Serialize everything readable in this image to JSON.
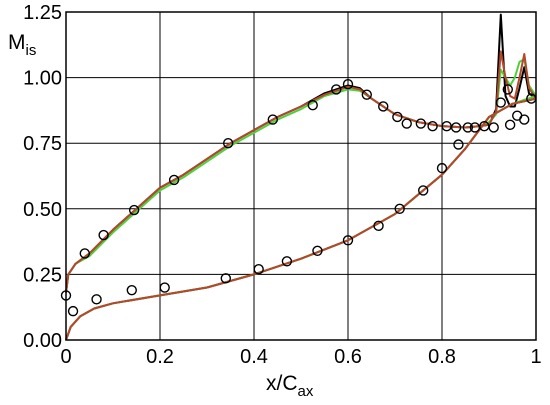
{
  "chart_data": {
    "type": "line",
    "xlabel_main": "x/C",
    "xlabel_sub": "ax",
    "ylabel_main": "M",
    "ylabel_sub": "is",
    "xlim": [
      0,
      1
    ],
    "ylim": [
      0,
      1.25
    ],
    "grid": true,
    "x_ticks": [
      0,
      0.2,
      0.4,
      0.6,
      0.8,
      1
    ],
    "x_tick_labels": [
      "0",
      "0.2",
      "0.4",
      "0.6",
      "0.8",
      "1"
    ],
    "y_ticks": [
      0,
      0.25,
      0.5,
      0.75,
      1.0,
      1.25
    ],
    "y_tick_labels": [
      "0.00",
      "0.25",
      "0.50",
      "0.75",
      "1.00",
      "1.25"
    ],
    "series": [
      {
        "color": "#000000",
        "upper": [
          [
            0,
            0.18
          ],
          [
            0.005,
            0.25
          ],
          [
            0.02,
            0.29
          ],
          [
            0.05,
            0.33
          ],
          [
            0.1,
            0.42
          ],
          [
            0.15,
            0.5
          ],
          [
            0.2,
            0.58
          ],
          [
            0.25,
            0.63
          ],
          [
            0.3,
            0.69
          ],
          [
            0.35,
            0.75
          ],
          [
            0.4,
            0.8
          ],
          [
            0.45,
            0.85
          ],
          [
            0.5,
            0.89
          ],
          [
            0.55,
            0.94
          ],
          [
            0.6,
            0.97
          ],
          [
            0.625,
            0.96
          ],
          [
            0.65,
            0.92
          ],
          [
            0.7,
            0.86
          ],
          [
            0.75,
            0.83
          ],
          [
            0.8,
            0.815
          ],
          [
            0.85,
            0.81
          ],
          [
            0.88,
            0.815
          ],
          [
            0.9,
            0.82
          ],
          [
            0.915,
            0.88
          ],
          [
            0.925,
            1.24
          ],
          [
            0.935,
            0.93
          ],
          [
            0.945,
            0.89
          ],
          [
            0.955,
            0.89
          ],
          [
            0.965,
            0.96
          ],
          [
            0.975,
            1.04
          ],
          [
            0.985,
            0.94
          ],
          [
            1,
            0.92
          ]
        ],
        "lower": [
          [
            0,
            0
          ],
          [
            0.01,
            0.05
          ],
          [
            0.03,
            0.09
          ],
          [
            0.06,
            0.12
          ],
          [
            0.1,
            0.14
          ],
          [
            0.2,
            0.17
          ],
          [
            0.3,
            0.2
          ],
          [
            0.4,
            0.25
          ],
          [
            0.5,
            0.31
          ],
          [
            0.6,
            0.38
          ],
          [
            0.7,
            0.48
          ],
          [
            0.8,
            0.63
          ],
          [
            0.85,
            0.73
          ],
          [
            0.9,
            0.85
          ],
          [
            0.95,
            0.9
          ],
          [
            1,
            0.92
          ]
        ]
      },
      {
        "color": "#4cd13a",
        "upper": [
          [
            0,
            0.18
          ],
          [
            0.005,
            0.25
          ],
          [
            0.02,
            0.29
          ],
          [
            0.05,
            0.32
          ],
          [
            0.1,
            0.41
          ],
          [
            0.15,
            0.49
          ],
          [
            0.2,
            0.57
          ],
          [
            0.25,
            0.62
          ],
          [
            0.3,
            0.68
          ],
          [
            0.35,
            0.74
          ],
          [
            0.4,
            0.79
          ],
          [
            0.45,
            0.84
          ],
          [
            0.5,
            0.88
          ],
          [
            0.55,
            0.93
          ],
          [
            0.6,
            0.955
          ],
          [
            0.625,
            0.95
          ],
          [
            0.65,
            0.92
          ],
          [
            0.7,
            0.86
          ],
          [
            0.75,
            0.83
          ],
          [
            0.8,
            0.815
          ],
          [
            0.85,
            0.81
          ],
          [
            0.88,
            0.815
          ],
          [
            0.9,
            0.83
          ],
          [
            0.915,
            0.86
          ],
          [
            0.925,
            1.03
          ],
          [
            0.935,
            1.0
          ],
          [
            0.945,
            0.97
          ],
          [
            0.955,
            1.0
          ],
          [
            0.965,
            1.06
          ],
          [
            0.975,
            1.07
          ],
          [
            0.985,
            0.97
          ],
          [
            1,
            0.93
          ]
        ],
        "lower": [
          [
            0,
            0
          ],
          [
            0.01,
            0.05
          ],
          [
            0.03,
            0.09
          ],
          [
            0.06,
            0.12
          ],
          [
            0.1,
            0.14
          ],
          [
            0.2,
            0.17
          ],
          [
            0.3,
            0.2
          ],
          [
            0.4,
            0.25
          ],
          [
            0.5,
            0.31
          ],
          [
            0.6,
            0.38
          ],
          [
            0.7,
            0.48
          ],
          [
            0.8,
            0.63
          ],
          [
            0.85,
            0.73
          ],
          [
            0.9,
            0.85
          ],
          [
            0.95,
            0.9
          ],
          [
            1,
            0.93
          ]
        ]
      },
      {
        "color": "#b5472c",
        "upper": [
          [
            0,
            0.18
          ],
          [
            0.005,
            0.25
          ],
          [
            0.02,
            0.29
          ],
          [
            0.05,
            0.33
          ],
          [
            0.1,
            0.42
          ],
          [
            0.15,
            0.5
          ],
          [
            0.2,
            0.58
          ],
          [
            0.25,
            0.63
          ],
          [
            0.3,
            0.69
          ],
          [
            0.35,
            0.75
          ],
          [
            0.4,
            0.8
          ],
          [
            0.45,
            0.85
          ],
          [
            0.5,
            0.89
          ],
          [
            0.55,
            0.935
          ],
          [
            0.6,
            0.965
          ],
          [
            0.625,
            0.955
          ],
          [
            0.65,
            0.92
          ],
          [
            0.7,
            0.86
          ],
          [
            0.75,
            0.83
          ],
          [
            0.8,
            0.815
          ],
          [
            0.85,
            0.81
          ],
          [
            0.88,
            0.815
          ],
          [
            0.9,
            0.82
          ],
          [
            0.915,
            0.87
          ],
          [
            0.925,
            1.1
          ],
          [
            0.935,
            1.0
          ],
          [
            0.945,
            0.93
          ],
          [
            0.955,
            0.92
          ],
          [
            0.965,
            1.0
          ],
          [
            0.975,
            1.09
          ],
          [
            0.985,
            0.96
          ],
          [
            1,
            0.92
          ]
        ],
        "lower": [
          [
            0,
            0
          ],
          [
            0.01,
            0.05
          ],
          [
            0.03,
            0.09
          ],
          [
            0.06,
            0.12
          ],
          [
            0.1,
            0.14
          ],
          [
            0.2,
            0.17
          ],
          [
            0.3,
            0.2
          ],
          [
            0.4,
            0.25
          ],
          [
            0.5,
            0.31
          ],
          [
            0.6,
            0.38
          ],
          [
            0.7,
            0.48
          ],
          [
            0.8,
            0.63
          ],
          [
            0.85,
            0.73
          ],
          [
            0.9,
            0.85
          ],
          [
            0.95,
            0.9
          ],
          [
            1,
            0.92
          ]
        ]
      }
    ],
    "markers": [
      [
        0,
        0.17
      ],
      [
        0.015,
        0.11
      ],
      [
        0.04,
        0.33
      ],
      [
        0.065,
        0.155
      ],
      [
        0.08,
        0.4
      ],
      [
        0.14,
        0.19
      ],
      [
        0.145,
        0.495
      ],
      [
        0.21,
        0.2
      ],
      [
        0.23,
        0.61
      ],
      [
        0.34,
        0.235
      ],
      [
        0.345,
        0.75
      ],
      [
        0.41,
        0.27
      ],
      [
        0.44,
        0.84
      ],
      [
        0.47,
        0.3
      ],
      [
        0.525,
        0.895
      ],
      [
        0.535,
        0.34
      ],
      [
        0.575,
        0.955
      ],
      [
        0.6,
        0.38
      ],
      [
        0.6,
        0.975
      ],
      [
        0.64,
        0.935
      ],
      [
        0.665,
        0.435
      ],
      [
        0.675,
        0.89
      ],
      [
        0.705,
        0.85
      ],
      [
        0.71,
        0.5
      ],
      [
        0.725,
        0.825
      ],
      [
        0.755,
        0.825
      ],
      [
        0.76,
        0.57
      ],
      [
        0.78,
        0.815
      ],
      [
        0.8,
        0.655
      ],
      [
        0.81,
        0.815
      ],
      [
        0.83,
        0.81
      ],
      [
        0.835,
        0.745
      ],
      [
        0.855,
        0.81
      ],
      [
        0.87,
        0.81
      ],
      [
        0.89,
        0.815
      ],
      [
        0.91,
        0.81
      ],
      [
        0.925,
        0.905
      ],
      [
        0.94,
        0.955
      ],
      [
        0.945,
        0.82
      ],
      [
        0.96,
        0.855
      ],
      [
        0.975,
        0.84
      ],
      [
        0.99,
        0.92
      ]
    ]
  }
}
